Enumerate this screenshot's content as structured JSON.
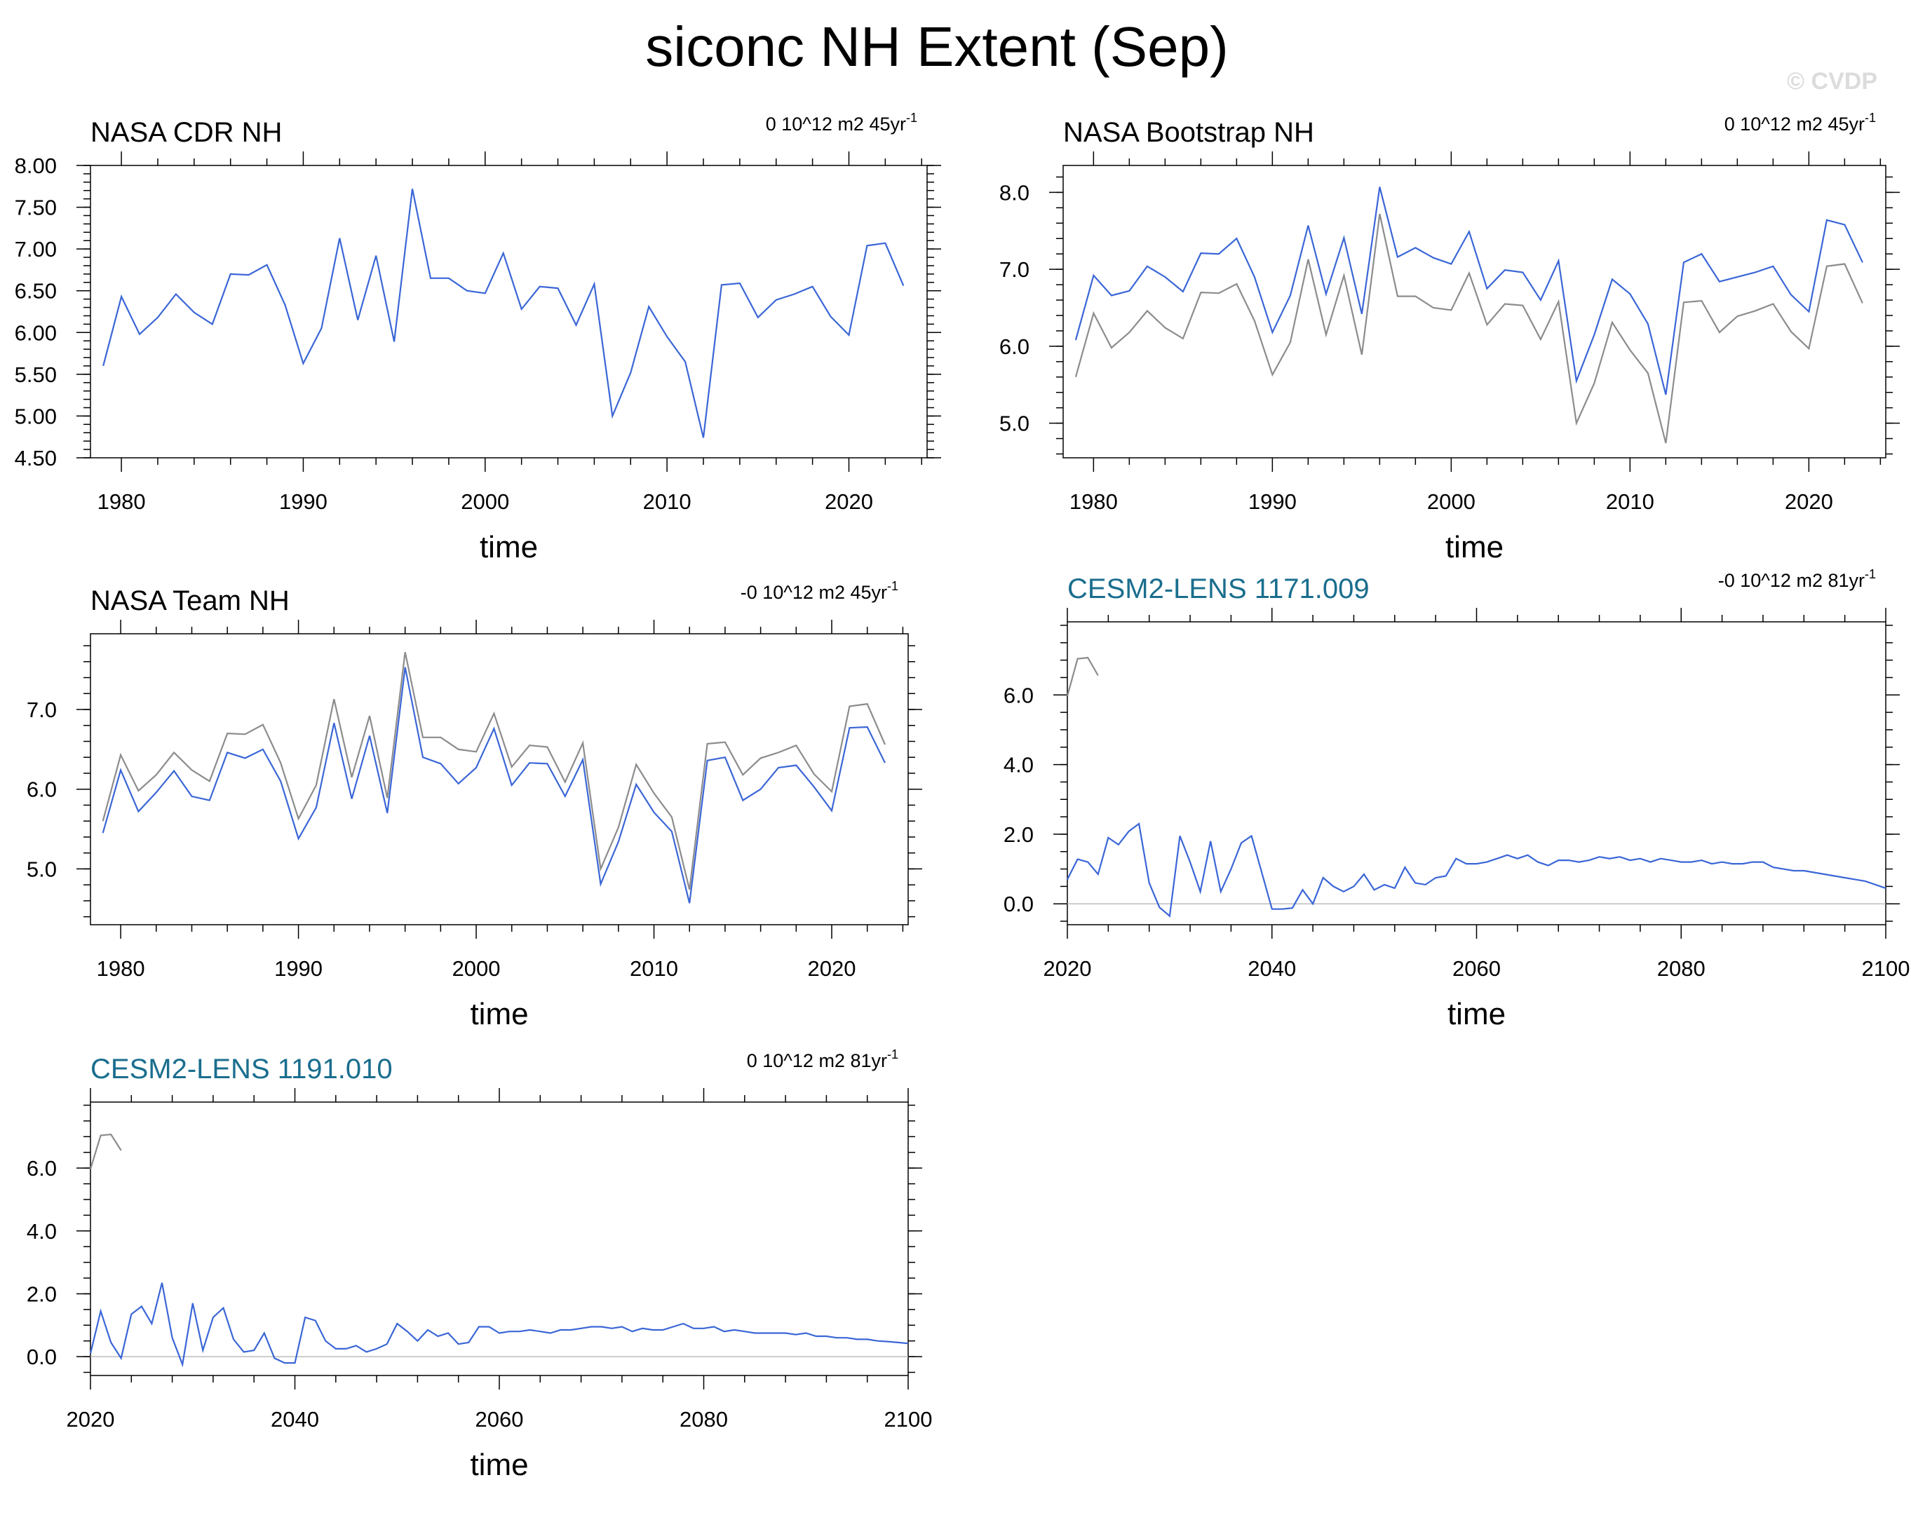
{
  "title": "siconc NH Extent (Sep)",
  "copyright": "© CVDP",
  "colors": {
    "blue": "#3a66d6",
    "gray": "#8c8c8c",
    "model_title": "#1a6e8e",
    "zero": "#bdbdbd"
  },
  "chart_data": [
    {
      "type": "line",
      "title": "NASA CDR NH",
      "title_style": "obs",
      "trend_text": "0 10^12 m2 45yr",
      "trend_sup": "-1",
      "xlabel": "time",
      "ylabel": "",
      "xlim": [
        1978.3,
        2024.3
      ],
      "ylim": [
        4.5,
        8.0
      ],
      "xticks": [
        1980,
        1990,
        2000,
        2010,
        2020
      ],
      "xtick_labels": [
        "1980",
        "1990",
        "2000",
        "2010",
        "2020"
      ],
      "yticks": [
        4.5,
        5.0,
        5.5,
        6.0,
        6.5,
        7.0,
        7.5,
        8.0
      ],
      "ytick_labels": [
        "4.50",
        "5.00",
        "5.50",
        "6.00",
        "6.50",
        "7.00",
        "7.50",
        "8.00"
      ],
      "yminor": 0.1,
      "xminor": 2,
      "zero_line": false,
      "x_start": 1979,
      "series": [
        {
          "name": "NASA CDR NH",
          "style": "blue",
          "values": [
            5.6,
            6.43,
            5.98,
            6.18,
            6.46,
            6.24,
            6.1,
            6.7,
            6.69,
            6.81,
            6.33,
            5.63,
            6.05,
            7.13,
            6.15,
            6.92,
            5.89,
            7.72,
            6.65,
            6.65,
            6.5,
            6.47,
            6.95,
            6.28,
            6.55,
            6.53,
            6.09,
            6.58,
            5.0,
            5.52,
            6.31,
            5.95,
            5.65,
            4.74,
            6.57,
            6.59,
            6.18,
            6.39,
            6.46,
            6.55,
            6.19,
            5.97,
            7.04,
            7.07,
            6.56
          ]
        }
      ]
    },
    {
      "type": "line",
      "title": "NASA Bootstrap NH",
      "title_style": "obs",
      "trend_text": "0 10^12 m2 45yr",
      "trend_sup": "-1",
      "xlabel": "time",
      "ylabel": "",
      "xlim": [
        1978.3,
        2024.3
      ],
      "ylim": [
        4.55,
        8.35
      ],
      "xticks": [
        1980,
        1990,
        2000,
        2010,
        2020
      ],
      "xtick_labels": [
        "1980",
        "1990",
        "2000",
        "2010",
        "2020"
      ],
      "yticks": [
        5.0,
        6.0,
        7.0,
        8.0
      ],
      "ytick_labels": [
        "5.0",
        "6.0",
        "7.0",
        "8.0"
      ],
      "yminor": 0.2,
      "xminor": 2,
      "zero_line": false,
      "x_start": 1979,
      "series": [
        {
          "name": "NASA CDR NH",
          "style": "gray",
          "values": [
            5.6,
            6.43,
            5.98,
            6.18,
            6.46,
            6.24,
            6.1,
            6.7,
            6.69,
            6.81,
            6.33,
            5.63,
            6.05,
            7.13,
            6.15,
            6.92,
            5.89,
            7.72,
            6.65,
            6.65,
            6.5,
            6.47,
            6.95,
            6.28,
            6.55,
            6.53,
            6.09,
            6.58,
            5.0,
            5.52,
            6.31,
            5.95,
            5.65,
            4.74,
            6.57,
            6.59,
            6.18,
            6.39,
            6.46,
            6.55,
            6.19,
            5.97,
            7.04,
            7.07,
            6.56
          ]
        },
        {
          "name": "NASA Bootstrap NH",
          "style": "blue",
          "values": [
            6.08,
            6.92,
            6.66,
            6.72,
            7.04,
            6.9,
            6.71,
            7.21,
            7.2,
            7.4,
            6.9,
            6.18,
            6.66,
            7.57,
            6.68,
            7.41,
            6.42,
            8.07,
            7.16,
            7.28,
            7.15,
            7.07,
            7.49,
            6.75,
            6.99,
            6.96,
            6.6,
            7.11,
            5.55,
            6.15,
            6.87,
            6.68,
            6.29,
            5.37,
            7.09,
            7.2,
            6.84,
            6.9,
            6.96,
            7.04,
            6.67,
            6.45,
            7.64,
            7.58,
            7.09
          ]
        }
      ]
    },
    {
      "type": "line",
      "title": "NASA Team NH",
      "title_style": "obs",
      "trend_text": "-0 10^12 m2 45yr",
      "trend_sup": "-1",
      "xlabel": "time",
      "ylabel": "",
      "xlim": [
        1978.3,
        2024.3
      ],
      "ylim": [
        4.3,
        7.95
      ],
      "xticks": [
        1980,
        1990,
        2000,
        2010,
        2020
      ],
      "xtick_labels": [
        "1980",
        "1990",
        "2000",
        "2010",
        "2020"
      ],
      "yticks": [
        5.0,
        6.0,
        7.0
      ],
      "ytick_labels": [
        "5.0",
        "6.0",
        "7.0"
      ],
      "yminor": 0.2,
      "xminor": 2,
      "zero_line": false,
      "x_start": 1979,
      "series": [
        {
          "name": "NASA CDR NH",
          "style": "gray",
          "values": [
            5.6,
            6.43,
            5.98,
            6.18,
            6.46,
            6.24,
            6.1,
            6.7,
            6.69,
            6.81,
            6.33,
            5.63,
            6.05,
            7.13,
            6.15,
            6.92,
            5.89,
            7.72,
            6.65,
            6.65,
            6.5,
            6.47,
            6.95,
            6.28,
            6.55,
            6.53,
            6.09,
            6.58,
            5.0,
            5.52,
            6.31,
            5.95,
            5.65,
            4.74,
            6.57,
            6.59,
            6.18,
            6.39,
            6.46,
            6.55,
            6.19,
            5.97,
            7.04,
            7.07,
            6.56
          ]
        },
        {
          "name": "NASA Team NH",
          "style": "blue",
          "values": [
            5.45,
            6.24,
            5.72,
            5.96,
            6.23,
            5.91,
            5.86,
            6.46,
            6.39,
            6.5,
            6.1,
            5.38,
            5.77,
            6.83,
            5.88,
            6.67,
            5.7,
            7.53,
            6.4,
            6.32,
            6.07,
            6.27,
            6.76,
            6.05,
            6.33,
            6.32,
            5.91,
            6.37,
            4.81,
            5.34,
            6.06,
            5.71,
            5.47,
            4.57,
            6.36,
            6.4,
            5.86,
            6.0,
            6.27,
            6.3,
            6.03,
            5.73,
            6.77,
            6.78,
            6.33
          ]
        }
      ]
    },
    {
      "type": "line",
      "title": "CESM2-LENS 1171.009",
      "title_style": "model",
      "trend_text": "-0 10^12 m2 81yr",
      "trend_sup": "-1",
      "xlabel": "time",
      "ylabel": "",
      "xlim": [
        2020,
        2100
      ],
      "ylim": [
        -0.6,
        8.1
      ],
      "xticks": [
        2020,
        2040,
        2060,
        2080,
        2100
      ],
      "xtick_labels": [
        "2020",
        "2040",
        "2060",
        "2080",
        "2100"
      ],
      "yticks": [
        0.0,
        2.0,
        4.0,
        6.0
      ],
      "ytick_labels": [
        "0.0",
        "2.0",
        "4.0",
        "6.0"
      ],
      "yminor": 0.5,
      "xminor": 4,
      "zero_line": true,
      "x_start": 2020,
      "series": [
        {
          "name": "NASA CDR NH",
          "style": "gray",
          "x_start": 2020,
          "values": [
            5.97,
            7.04,
            7.07,
            6.56
          ]
        },
        {
          "name": "CESM2-LENS 1171.009",
          "style": "blue",
          "values": [
            0.7,
            1.28,
            1.2,
            0.85,
            1.9,
            1.7,
            2.08,
            2.3,
            0.6,
            -0.1,
            -0.35,
            1.95,
            1.2,
            0.35,
            1.8,
            0.35,
            1.0,
            1.75,
            1.95,
            0.9,
            -0.15,
            -0.15,
            -0.12,
            0.4,
            0.0,
            0.75,
            0.5,
            0.35,
            0.5,
            0.85,
            0.4,
            0.55,
            0.45,
            1.05,
            0.6,
            0.55,
            0.75,
            0.8,
            1.3,
            1.15,
            1.15,
            1.2,
            1.3,
            1.4,
            1.3,
            1.4,
            1.2,
            1.1,
            1.25,
            1.25,
            1.2,
            1.25,
            1.35,
            1.3,
            1.35,
            1.25,
            1.3,
            1.2,
            1.3,
            1.25,
            1.2,
            1.2,
            1.25,
            1.15,
            1.2,
            1.15,
            1.15,
            1.2,
            1.2,
            1.05,
            1.0,
            0.95,
            0.95,
            0.9,
            0.85,
            0.8,
            0.75,
            0.7,
            0.65,
            0.55,
            0.45
          ]
        }
      ]
    },
    {
      "type": "line",
      "title": "CESM2-LENS 1191.010",
      "title_style": "model",
      "trend_text": "0 10^12 m2 81yr",
      "trend_sup": "-1",
      "xlabel": "time",
      "ylabel": "",
      "xlim": [
        2020,
        2100
      ],
      "ylim": [
        -0.6,
        8.1
      ],
      "xticks": [
        2020,
        2040,
        2060,
        2080,
        2100
      ],
      "xtick_labels": [
        "2020",
        "2040",
        "2060",
        "2080",
        "2100"
      ],
      "yticks": [
        0.0,
        2.0,
        4.0,
        6.0
      ],
      "ytick_labels": [
        "0.0",
        "2.0",
        "4.0",
        "6.0"
      ],
      "yminor": 0.5,
      "xminor": 4,
      "zero_line": true,
      "x_start": 2020,
      "series": [
        {
          "name": "NASA CDR NH",
          "style": "gray",
          "x_start": 2020,
          "values": [
            5.97,
            7.04,
            7.07,
            6.56
          ]
        },
        {
          "name": "CESM2-LENS 1191.010",
          "style": "blue",
          "values": [
            0.1,
            1.45,
            0.45,
            -0.05,
            1.35,
            1.6,
            1.05,
            2.35,
            0.6,
            -0.25,
            1.7,
            0.2,
            1.25,
            1.55,
            0.55,
            0.15,
            0.2,
            0.75,
            -0.05,
            -0.2,
            -0.2,
            1.25,
            1.15,
            0.5,
            0.25,
            0.25,
            0.35,
            0.15,
            0.25,
            0.4,
            1.05,
            0.8,
            0.5,
            0.85,
            0.65,
            0.75,
            0.4,
            0.45,
            0.95,
            0.95,
            0.75,
            0.8,
            0.8,
            0.85,
            0.8,
            0.75,
            0.85,
            0.85,
            0.9,
            0.95,
            0.95,
            0.9,
            0.95,
            0.8,
            0.9,
            0.85,
            0.85,
            0.95,
            1.05,
            0.9,
            0.9,
            0.95,
            0.8,
            0.85,
            0.8,
            0.75,
            0.75,
            0.75,
            0.75,
            0.7,
            0.75,
            0.65,
            0.65,
            0.6,
            0.6,
            0.55,
            0.55,
            0.5,
            0.48,
            0.45,
            0.42
          ]
        }
      ]
    }
  ]
}
